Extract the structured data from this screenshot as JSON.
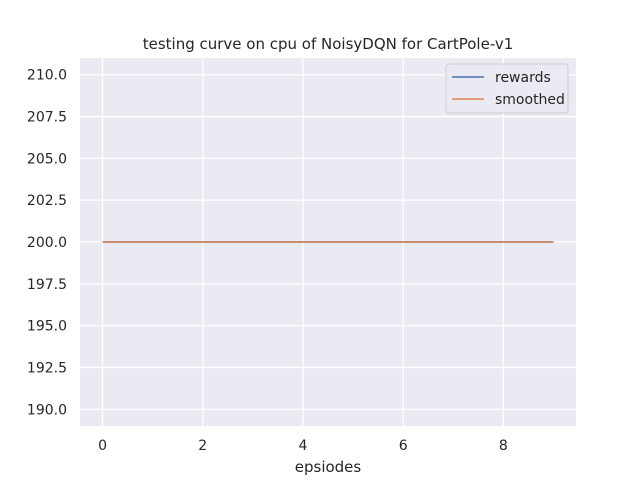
{
  "chart_data": {
    "type": "line",
    "title": "testing curve on cpu of NoisyDQN for CartPole-v1",
    "xlabel": "epsiodes",
    "ylabel": "",
    "xlim": [
      -0.45,
      9.45
    ],
    "ylim": [
      189.0,
      211.0
    ],
    "x_ticks": [
      0,
      2,
      4,
      6,
      8
    ],
    "x_tick_labels": [
      "0",
      "2",
      "4",
      "6",
      "8"
    ],
    "y_ticks": [
      190.0,
      192.5,
      195.0,
      197.5,
      200.0,
      202.5,
      205.0,
      207.5,
      210.0
    ],
    "y_tick_labels": [
      "190.0",
      "192.5",
      "195.0",
      "197.5",
      "200.0",
      "202.5",
      "205.0",
      "207.5",
      "210.0"
    ],
    "x": [
      0,
      1,
      2,
      3,
      4,
      5,
      6,
      7,
      8,
      9
    ],
    "series": [
      {
        "name": "rewards",
        "color": "#4c72b0",
        "values": [
          200,
          200,
          200,
          200,
          200,
          200,
          200,
          200,
          200,
          200
        ]
      },
      {
        "name": "smoothed",
        "color": "#dd8452",
        "values": [
          200,
          200,
          200,
          200,
          200,
          200,
          200,
          200,
          200,
          200
        ]
      }
    ],
    "grid": true,
    "legend_position": "upper-right",
    "background_color": "#eaeaf2",
    "grid_color": "#ffffff"
  }
}
